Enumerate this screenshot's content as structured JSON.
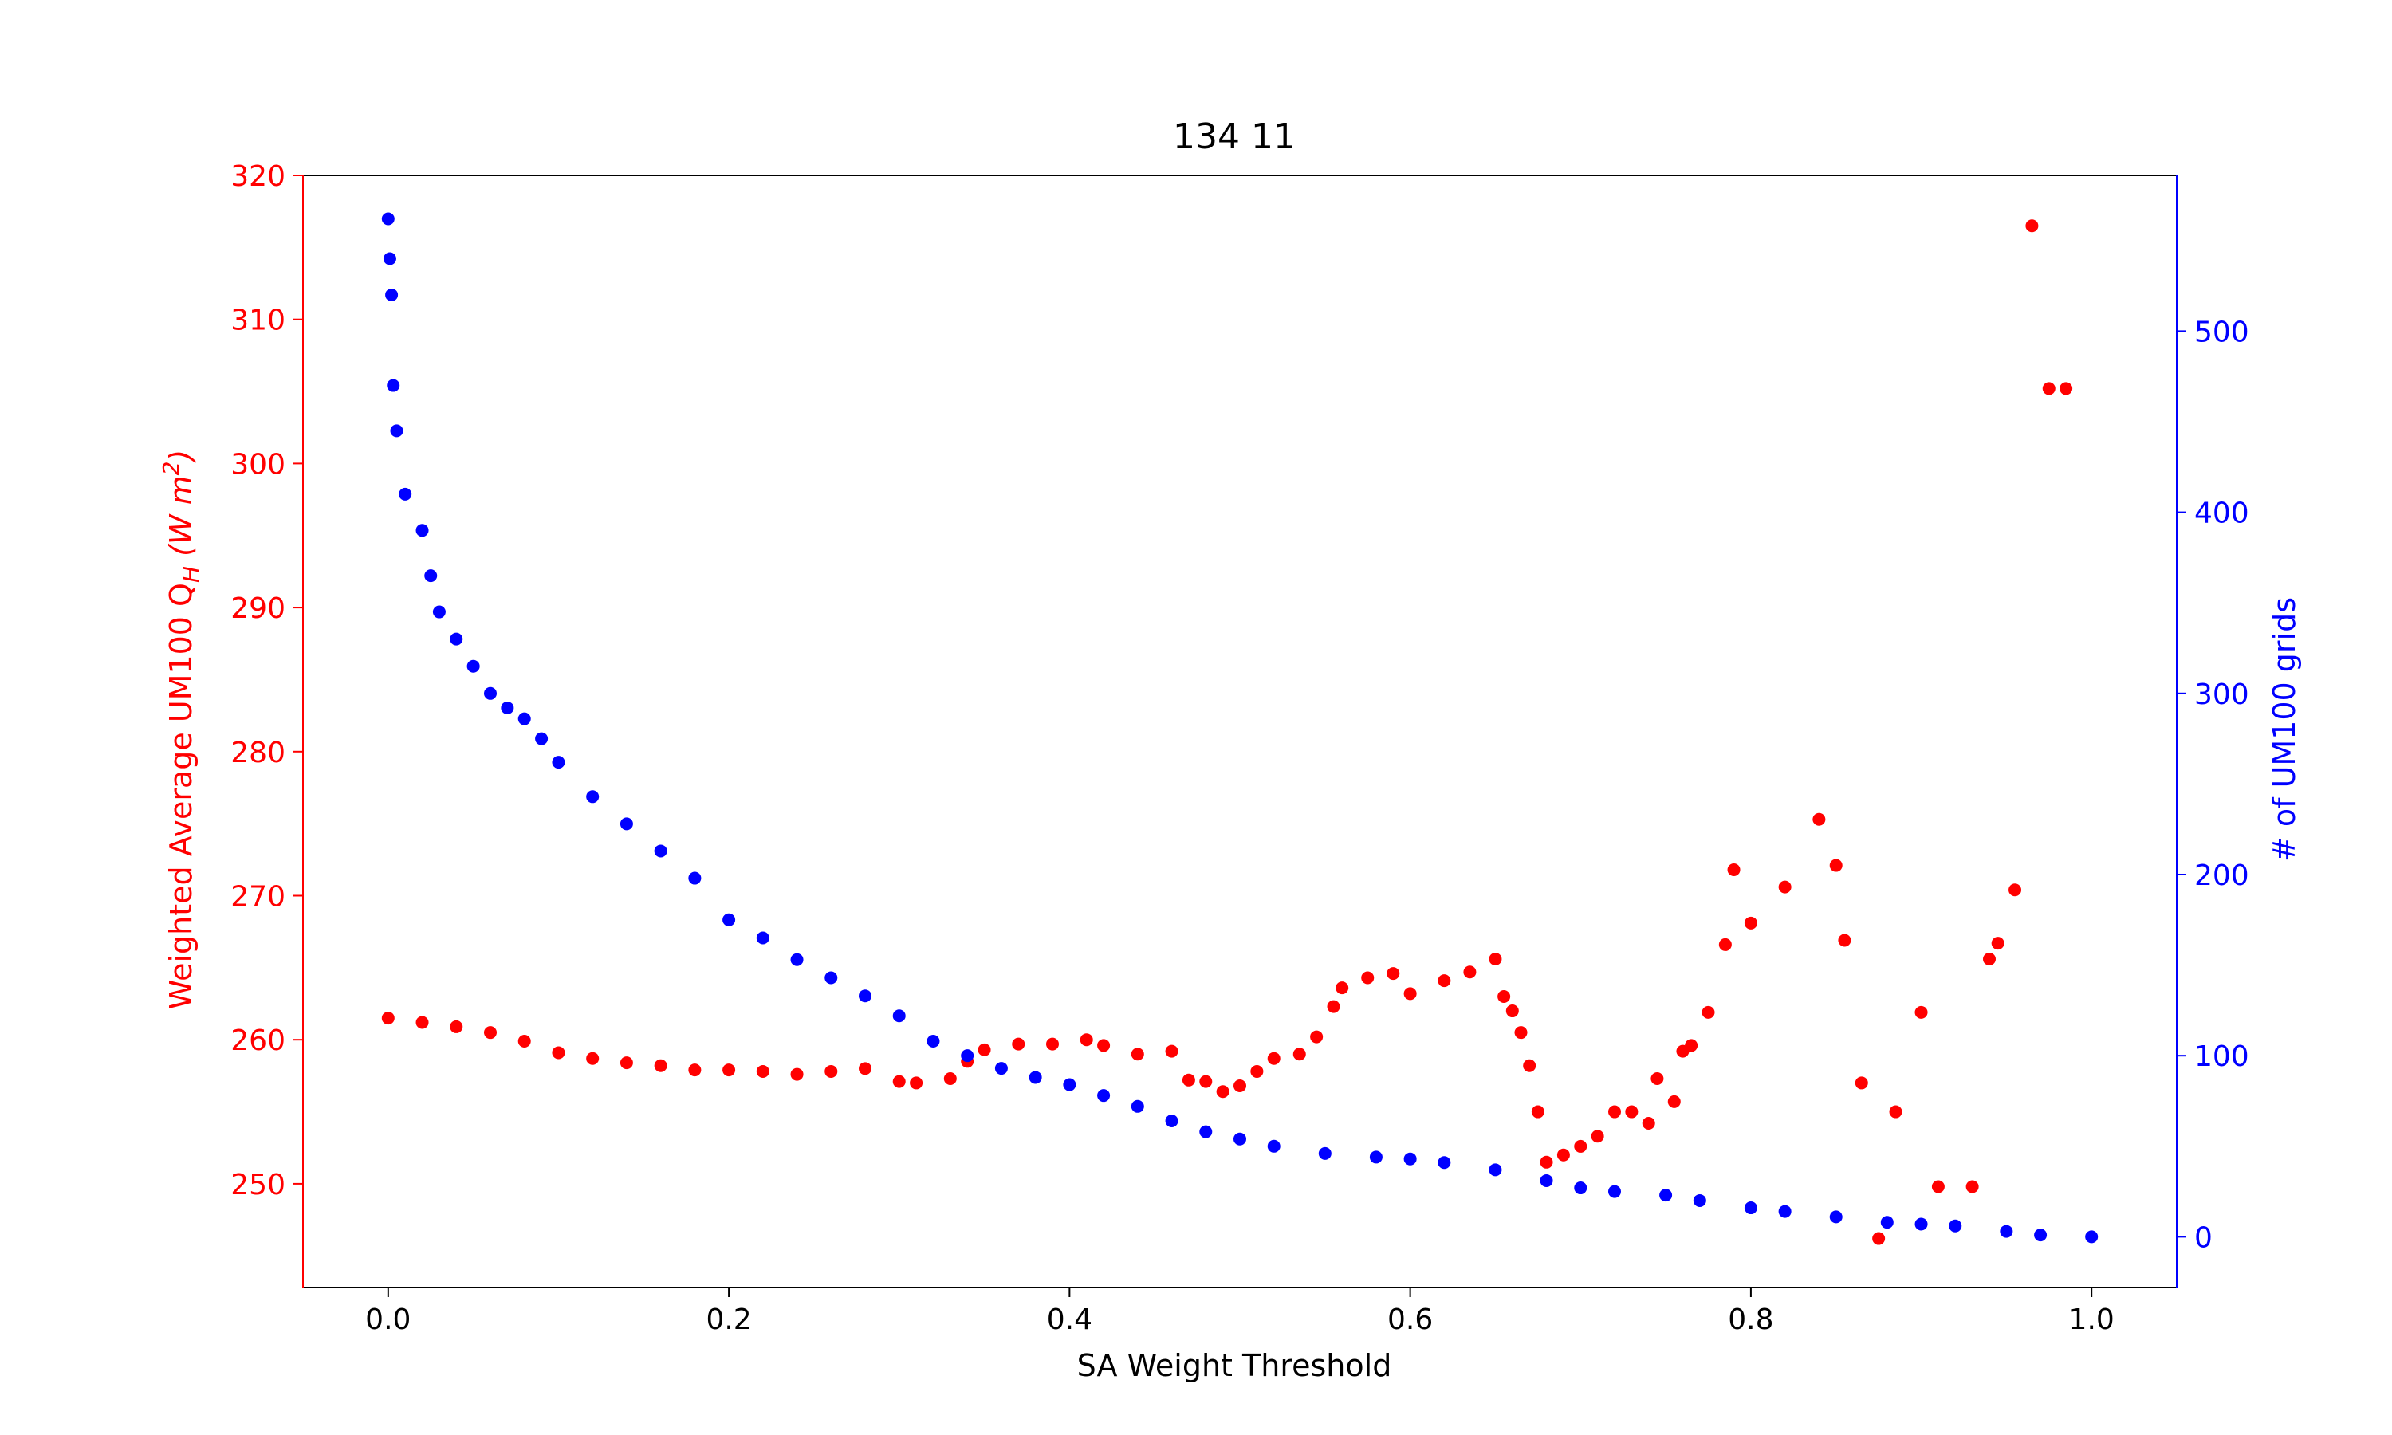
{
  "chart_data": {
    "type": "scatter",
    "title": "134 11",
    "xlabel": "SA Weight Threshold",
    "ylabel_left": "Weighted Average UM100 Q",
    "ylabel_left_sub": "H",
    "ylabel_left_unit_open": " (W m",
    "ylabel_left_unit_sup": "2",
    "ylabel_left_unit_close": ")",
    "ylabel_right": "# of UM100 grids",
    "xlim": [
      -0.05,
      1.05
    ],
    "ylim_left": [
      242.8,
      320
    ],
    "ylim_right": [
      -28,
      586
    ],
    "x_ticks": [
      0.0,
      0.2,
      0.4,
      0.6,
      0.8,
      1.0
    ],
    "x_tick_labels": [
      "0.0",
      "0.2",
      "0.4",
      "0.6",
      "0.8",
      "1.0"
    ],
    "y_left_ticks": [
      250,
      260,
      270,
      280,
      290,
      300,
      310,
      320
    ],
    "y_left_tick_labels": [
      "250",
      "260",
      "270",
      "280",
      "290",
      "300",
      "310",
      "320"
    ],
    "y_right_ticks": [
      0,
      100,
      200,
      300,
      400,
      500
    ],
    "y_right_tick_labels": [
      "0",
      "100",
      "200",
      "300",
      "400",
      "500"
    ],
    "colors": {
      "left_series": "#ff0000",
      "right_series": "#0000ff",
      "axis": "#000000"
    },
    "grid": false,
    "series": [
      {
        "axis": "left",
        "color": "#ff0000",
        "points": [
          [
            0.0,
            261.5
          ],
          [
            0.02,
            261.2
          ],
          [
            0.04,
            260.9
          ],
          [
            0.06,
            260.5
          ],
          [
            0.08,
            259.9
          ],
          [
            0.1,
            259.1
          ],
          [
            0.12,
            258.7
          ],
          [
            0.14,
            258.4
          ],
          [
            0.16,
            258.2
          ],
          [
            0.18,
            257.9
          ],
          [
            0.2,
            257.9
          ],
          [
            0.22,
            257.8
          ],
          [
            0.24,
            257.6
          ],
          [
            0.26,
            257.8
          ],
          [
            0.28,
            258.0
          ],
          [
            0.3,
            257.1
          ],
          [
            0.31,
            257.0
          ],
          [
            0.33,
            257.3
          ],
          [
            0.34,
            258.5
          ],
          [
            0.35,
            259.3
          ],
          [
            0.37,
            259.7
          ],
          [
            0.39,
            259.7
          ],
          [
            0.41,
            260.0
          ],
          [
            0.42,
            259.6
          ],
          [
            0.44,
            259.0
          ],
          [
            0.46,
            259.2
          ],
          [
            0.47,
            257.2
          ],
          [
            0.48,
            257.1
          ],
          [
            0.49,
            256.4
          ],
          [
            0.5,
            256.8
          ],
          [
            0.51,
            257.8
          ],
          [
            0.52,
            258.7
          ],
          [
            0.535,
            259.0
          ],
          [
            0.545,
            260.2
          ],
          [
            0.555,
            262.3
          ],
          [
            0.56,
            263.6
          ],
          [
            0.575,
            264.3
          ],
          [
            0.59,
            264.6
          ],
          [
            0.6,
            263.2
          ],
          [
            0.62,
            264.1
          ],
          [
            0.635,
            264.7
          ],
          [
            0.65,
            265.6
          ],
          [
            0.655,
            263.0
          ],
          [
            0.66,
            262.0
          ],
          [
            0.665,
            260.5
          ],
          [
            0.67,
            258.2
          ],
          [
            0.675,
            255.0
          ],
          [
            0.68,
            251.5
          ],
          [
            0.69,
            252.0
          ],
          [
            0.7,
            252.6
          ],
          [
            0.71,
            253.3
          ],
          [
            0.72,
            255.0
          ],
          [
            0.73,
            255.0
          ],
          [
            0.74,
            254.2
          ],
          [
            0.745,
            257.3
          ],
          [
            0.755,
            255.7
          ],
          [
            0.76,
            259.2
          ],
          [
            0.765,
            259.6
          ],
          [
            0.775,
            261.9
          ],
          [
            0.785,
            266.6
          ],
          [
            0.79,
            271.8
          ],
          [
            0.8,
            268.1
          ],
          [
            0.82,
            270.6
          ],
          [
            0.84,
            275.3
          ],
          [
            0.85,
            272.1
          ],
          [
            0.855,
            266.9
          ],
          [
            0.865,
            257.0
          ],
          [
            0.875,
            246.2
          ],
          [
            0.885,
            255.0
          ],
          [
            0.9,
            261.9
          ],
          [
            0.91,
            249.8
          ],
          [
            0.93,
            249.8
          ],
          [
            0.94,
            265.6
          ],
          [
            0.945,
            266.7
          ],
          [
            0.955,
            270.4
          ],
          [
            0.965,
            316.5
          ],
          [
            0.975,
            305.2
          ],
          [
            0.985,
            305.2
          ]
        ]
      },
      {
        "axis": "right",
        "color": "#0000ff",
        "points": [
          [
            0.0,
            562
          ],
          [
            0.001,
            540
          ],
          [
            0.002,
            520
          ],
          [
            0.003,
            470
          ],
          [
            0.005,
            445
          ],
          [
            0.01,
            410
          ],
          [
            0.02,
            390
          ],
          [
            0.025,
            365
          ],
          [
            0.03,
            345
          ],
          [
            0.04,
            330
          ],
          [
            0.05,
            315
          ],
          [
            0.06,
            300
          ],
          [
            0.07,
            292
          ],
          [
            0.08,
            286
          ],
          [
            0.09,
            275
          ],
          [
            0.1,
            262
          ],
          [
            0.12,
            243
          ],
          [
            0.14,
            228
          ],
          [
            0.16,
            213
          ],
          [
            0.18,
            198
          ],
          [
            0.2,
            175
          ],
          [
            0.22,
            165
          ],
          [
            0.24,
            153
          ],
          [
            0.26,
            143
          ],
          [
            0.28,
            133
          ],
          [
            0.3,
            122
          ],
          [
            0.32,
            108
          ],
          [
            0.34,
            100
          ],
          [
            0.36,
            93
          ],
          [
            0.38,
            88
          ],
          [
            0.4,
            84
          ],
          [
            0.42,
            78
          ],
          [
            0.44,
            72
          ],
          [
            0.46,
            64
          ],
          [
            0.48,
            58
          ],
          [
            0.5,
            54
          ],
          [
            0.52,
            50
          ],
          [
            0.55,
            46
          ],
          [
            0.58,
            44
          ],
          [
            0.6,
            43
          ],
          [
            0.62,
            41
          ],
          [
            0.65,
            37
          ],
          [
            0.68,
            31
          ],
          [
            0.7,
            27
          ],
          [
            0.72,
            25
          ],
          [
            0.75,
            23
          ],
          [
            0.77,
            20
          ],
          [
            0.8,
            16
          ],
          [
            0.82,
            14
          ],
          [
            0.85,
            11
          ],
          [
            0.88,
            8
          ],
          [
            0.9,
            7
          ],
          [
            0.92,
            6
          ],
          [
            0.95,
            3
          ],
          [
            0.97,
            1
          ],
          [
            1.0,
            0
          ]
        ]
      }
    ]
  }
}
